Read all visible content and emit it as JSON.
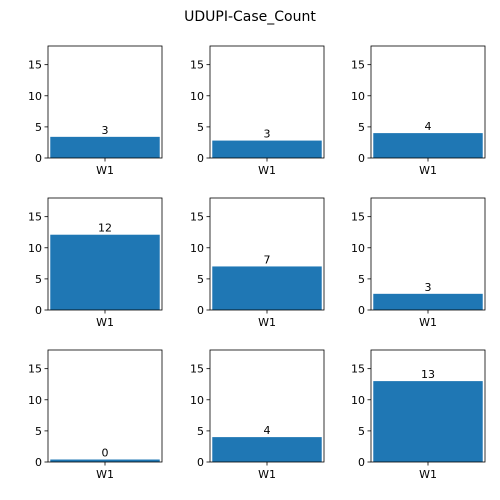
{
  "chart_data": {
    "type": "bar",
    "title": "UDUPI-Case_Count",
    "ylim": [
      0,
      18
    ],
    "yticks": [
      0,
      5,
      10,
      15
    ],
    "bar_color": "#1f77b4",
    "layout": "3x3 grid",
    "panels": [
      {
        "category": "W1",
        "value": 3.4,
        "label": "3"
      },
      {
        "category": "W1",
        "value": 2.8,
        "label": "3"
      },
      {
        "category": "W1",
        "value": 4,
        "label": "4"
      },
      {
        "category": "W1",
        "value": 12.1,
        "label": "12"
      },
      {
        "category": "W1",
        "value": 7,
        "label": "7"
      },
      {
        "category": "W1",
        "value": 2.6,
        "label": "3"
      },
      {
        "category": "W1",
        "value": 0.4,
        "label": "0"
      },
      {
        "category": "W1",
        "value": 4,
        "label": "4"
      },
      {
        "category": "W1",
        "value": 13,
        "label": "13"
      }
    ]
  }
}
